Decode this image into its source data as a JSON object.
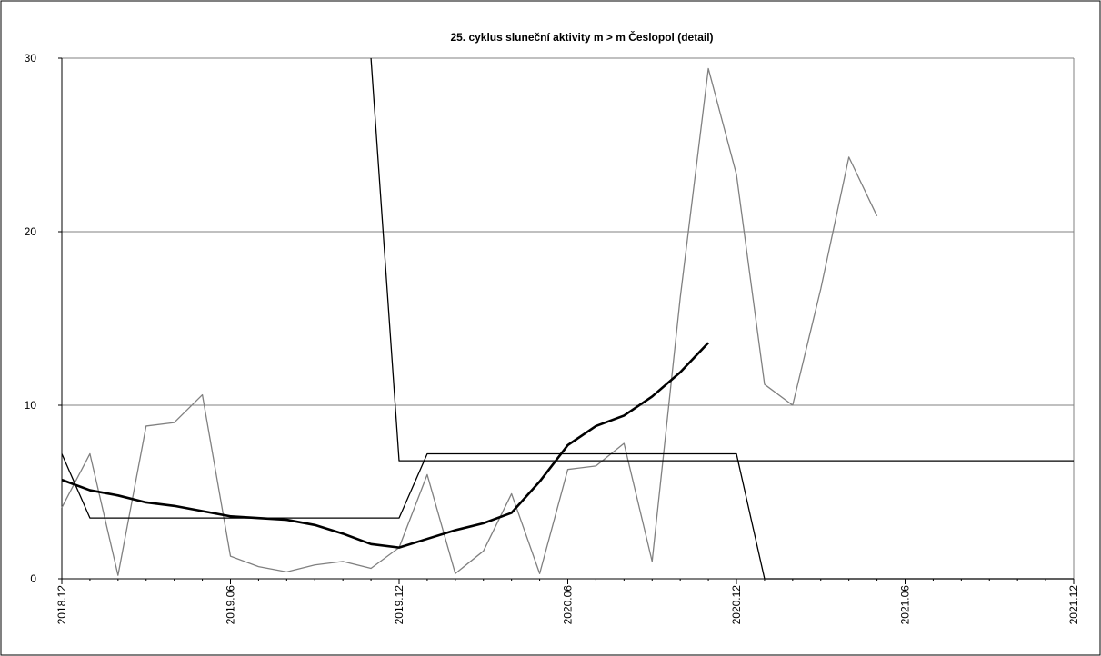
{
  "chart_data": {
    "type": "line",
    "title": "25. cyklus sluneční aktivity m > m Česlopol (detail)",
    "xlabel": "",
    "ylabel": "",
    "ylim": [
      0,
      30
    ],
    "y_ticks": [
      "0",
      "10",
      "20",
      "30"
    ],
    "x_ticks": [
      "2018.12",
      "2019.06",
      "2019.12",
      "2020.06",
      "2020.12",
      "2021.06",
      "2021.12"
    ],
    "grid": true,
    "colors": {
      "monthly": "#808080",
      "smoothed": "#000000",
      "bounds": "#000000",
      "grid": "#808080"
    },
    "series": [
      {
        "style": "thin-gray",
        "x": [
          "2018.12",
          "2019.01",
          "2019.02",
          "2019.03",
          "2019.04",
          "2019.05",
          "2019.06",
          "2019.07",
          "2019.08",
          "2019.09",
          "2019.10",
          "2019.11",
          "2019.12",
          "2020.01",
          "2020.02",
          "2020.03",
          "2020.04",
          "2020.05",
          "2020.06",
          "2020.07",
          "2020.08",
          "2020.09",
          "2020.10",
          "2020.11",
          "2020.12",
          "2021.01",
          "2021.02",
          "2021.03",
          "2021.04",
          "2021.05"
        ],
        "values": [
          4.1,
          7.2,
          0.2,
          8.8,
          9.0,
          10.6,
          1.3,
          0.7,
          0.4,
          0.8,
          1.0,
          0.6,
          1.8,
          6.0,
          0.3,
          1.6,
          4.9,
          0.3,
          6.3,
          6.5,
          7.8,
          1.0,
          16.2,
          29.4,
          23.3,
          11.2,
          10.0,
          16.7,
          24.3,
          20.9
        ]
      },
      {
        "style": "thick-black",
        "x": [
          "2018.12",
          "2019.01",
          "2019.02",
          "2019.03",
          "2019.04",
          "2019.05",
          "2019.06",
          "2019.07",
          "2019.08",
          "2019.09",
          "2019.10",
          "2019.11",
          "2019.12",
          "2020.01",
          "2020.02",
          "2020.03",
          "2020.04",
          "2020.05",
          "2020.06",
          "2020.07",
          "2020.08",
          "2020.09",
          "2020.10",
          "2020.11"
        ],
        "values": [
          5.7,
          5.1,
          4.8,
          4.4,
          4.2,
          3.9,
          3.6,
          3.5,
          3.4,
          3.1,
          2.6,
          2.0,
          1.8,
          2.3,
          2.8,
          3.2,
          3.8,
          5.6,
          7.7,
          8.8,
          9.4,
          10.5,
          11.9,
          13.6
        ]
      },
      {
        "style": "thin-black",
        "x": [
          "2018.12",
          "2019.01",
          "2019.11",
          "2019.12",
          "2020.01",
          "2020.11",
          "2020.12",
          "2021.01",
          "2021.12"
        ],
        "values": [
          7.2,
          3.5,
          3.5,
          3.5,
          7.2,
          7.2,
          7.2,
          0,
          0
        ]
      },
      {
        "style": "thin-black",
        "x": [
          "2019.11",
          "2019.12",
          "2021.12"
        ],
        "values": [
          30,
          6.8,
          6.8
        ]
      }
    ]
  }
}
